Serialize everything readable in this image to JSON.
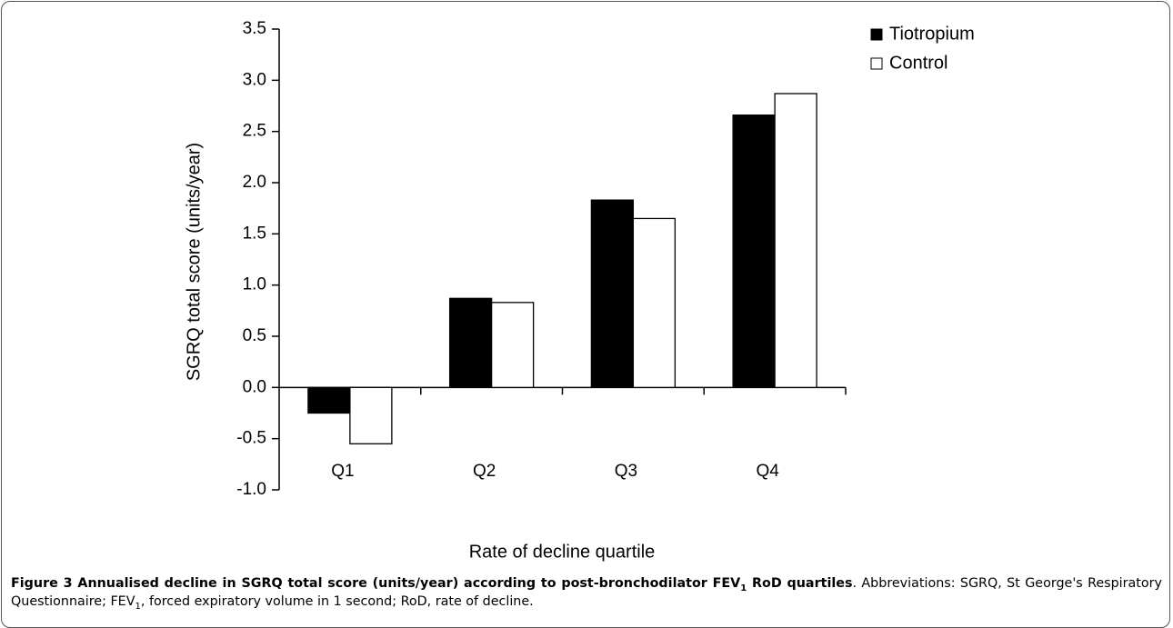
{
  "chart_data": {
    "type": "bar",
    "y_label": "SGRQ total score (units/year)",
    "x_label": "Rate of decline quartile",
    "categories": [
      "Q1",
      "Q2",
      "Q3",
      "Q4"
    ],
    "series": [
      {
        "name": "Tiotropium",
        "color": "#000000",
        "values": [
          -0.25,
          0.87,
          1.83,
          2.66
        ]
      },
      {
        "name": "Control",
        "color": "#ffffff",
        "values": [
          -0.55,
          0.83,
          1.65,
          2.87
        ]
      }
    ],
    "ylim": [
      -1.0,
      3.5
    ],
    "yticks": [
      {
        "value": -1.0,
        "label": "-1.0"
      },
      -0.5,
      {
        "value": 0.0,
        "label": "0.0"
      },
      0.5,
      {
        "value": 1.0,
        "label": "1.0"
      },
      1.5,
      {
        "value": 2.0,
        "label": "2.0"
      },
      2.5,
      {
        "value": 3.0,
        "label": "3.0"
      },
      3.5
    ],
    "grid": false,
    "legend": "top-right"
  },
  "caption": {
    "title_parts": [
      "Figure 3 Annualised decline in SGRQ total score (units/year) according to post-bronchodilator FEV",
      "1",
      " RoD quartiles"
    ],
    "text_parts": [
      ". Abbreviations: SGRQ, St George's Respiratory Questionnaire; FEV",
      "1",
      ", forced expiratory volume in 1 second; RoD, rate of decline."
    ]
  }
}
